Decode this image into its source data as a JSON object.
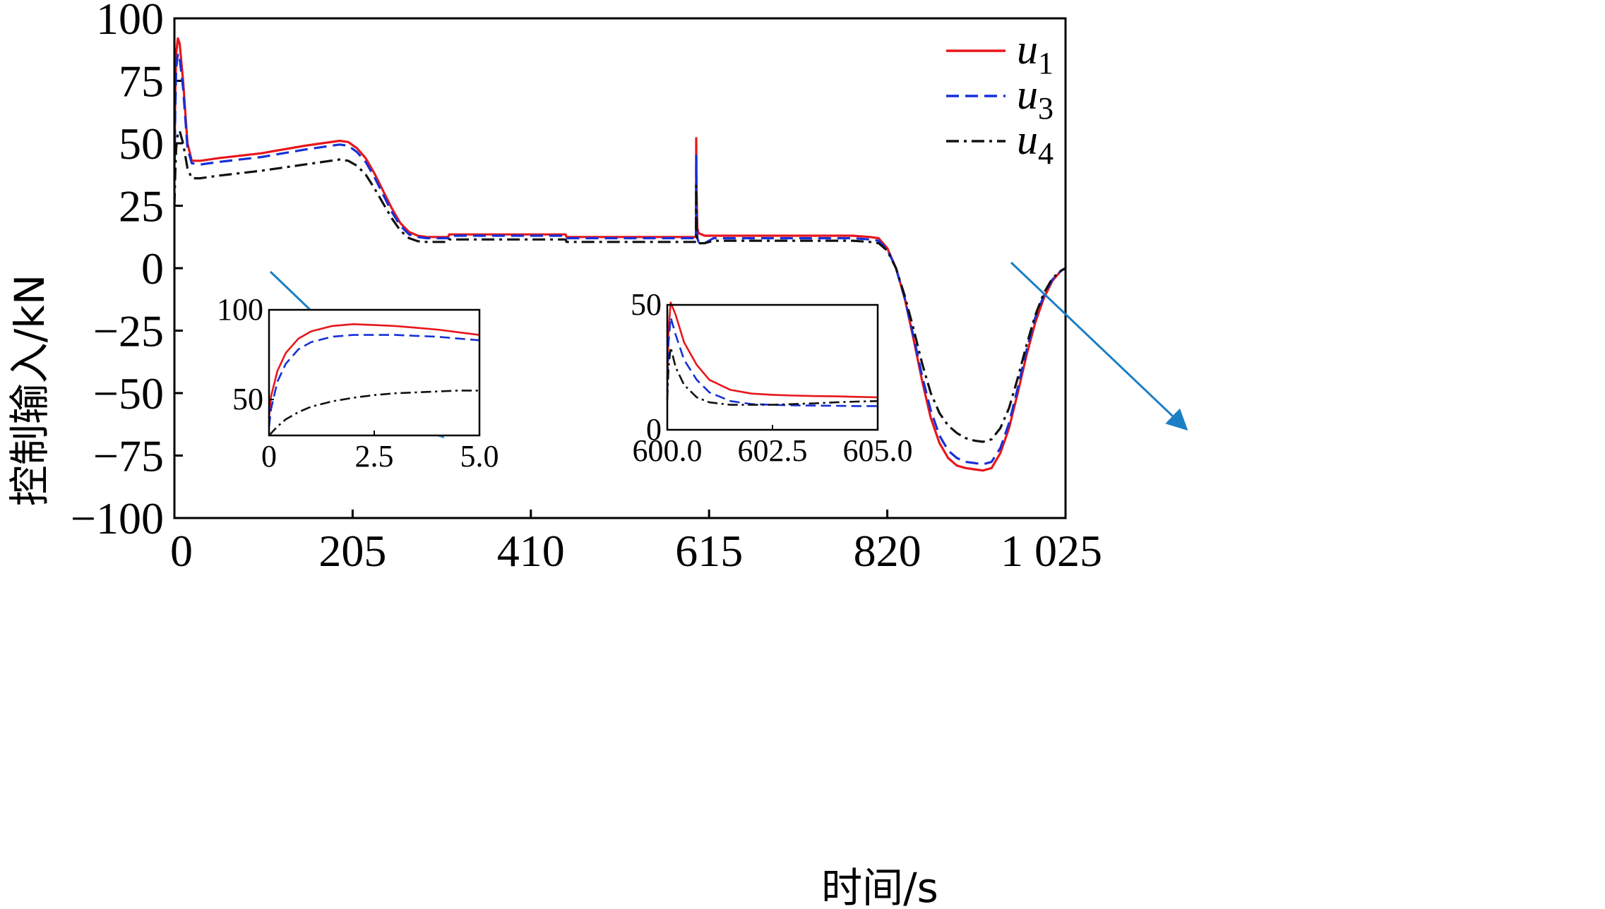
{
  "chart_data": {
    "type": "line",
    "xlabel": "时间/s",
    "ylabel": "控制输入/kN",
    "xlim": [
      0,
      1025
    ],
    "ylim": [
      -100,
      100
    ],
    "xticks": [
      0,
      205,
      410,
      615,
      820,
      1025
    ],
    "xtick_labels": [
      "0",
      "205",
      "410",
      "615",
      "820",
      "1 025"
    ],
    "yticks": [
      100,
      75,
      50,
      25,
      0,
      -25,
      -50,
      -75,
      -100
    ],
    "ytick_labels": [
      "100",
      "75",
      "50",
      "25",
      "0",
      "−25",
      "−50",
      "−75",
      "−100"
    ],
    "grid": false,
    "legend_position": "top-right",
    "series": [
      {
        "name": "u",
        "sub": "1",
        "color": "#e8161b",
        "style": "solid",
        "x": [
          0,
          1,
          2,
          4,
          6,
          10,
          15,
          20,
          30,
          50,
          100,
          150,
          190,
          200,
          210,
          220,
          230,
          240,
          250,
          260,
          270,
          280,
          290,
          300,
          315,
          316,
          450,
          451,
          600,
          600.2,
          600.6,
          601.5,
          603,
          610,
          700,
          780,
          800,
          810,
          820,
          830,
          840,
          850,
          860,
          870,
          880,
          890,
          900,
          910,
          920,
          930,
          940,
          950,
          960,
          970,
          980,
          990,
          1000,
          1010,
          1020,
          1025
        ],
        "y": [
          40,
          70,
          86,
          92,
          90,
          75,
          50,
          43,
          43,
          44,
          46,
          49,
          51,
          50.5,
          48,
          44,
          38,
          31,
          24,
          18,
          14.5,
          13,
          12.5,
          12.5,
          12.5,
          13.5,
          13.5,
          12.5,
          12.5,
          52,
          30,
          16,
          14,
          13,
          13,
          13,
          12.5,
          12,
          8,
          0,
          -12,
          -28,
          -45,
          -60,
          -70,
          -76,
          -79,
          -80,
          -80.5,
          -81,
          -80,
          -74,
          -64,
          -50,
          -35,
          -22,
          -12,
          -5,
          -1,
          0
        ]
      },
      {
        "name": "u",
        "sub": "3",
        "color": "#1530d8",
        "style": "dashed",
        "x": [
          0,
          1,
          2,
          4,
          6,
          10,
          15,
          20,
          30,
          50,
          100,
          150,
          190,
          200,
          210,
          220,
          230,
          240,
          250,
          260,
          270,
          280,
          290,
          300,
          315,
          316,
          450,
          451,
          600,
          600.2,
          600.6,
          601.5,
          603,
          610,
          620,
          700,
          780,
          800,
          810,
          820,
          830,
          840,
          850,
          860,
          870,
          880,
          890,
          900,
          910,
          920,
          930,
          940,
          950,
          960,
          970,
          980,
          990,
          1000,
          1010,
          1020,
          1025
        ],
        "y": [
          35,
          62,
          80,
          86,
          84,
          72,
          48,
          42,
          41.5,
          42.5,
          44.5,
          47.5,
          49.5,
          49,
          46.5,
          42.5,
          36.5,
          29.5,
          22.5,
          17,
          13.5,
          12.5,
          12,
          12,
          12,
          13,
          13,
          12,
          12,
          45,
          22,
          12,
          10.5,
          10,
          12,
          12,
          12,
          11.5,
          11,
          7.5,
          0,
          -12,
          -27,
          -43,
          -57,
          -67,
          -73,
          -76,
          -77.5,
          -78,
          -78.5,
          -77.5,
          -72,
          -62,
          -48,
          -33,
          -20,
          -11,
          -4.5,
          -1,
          0
        ]
      },
      {
        "name": "u",
        "sub": "4",
        "color": "#111111",
        "style": "dashdot",
        "x": [
          0,
          1,
          2,
          4,
          6,
          10,
          15,
          20,
          30,
          50,
          100,
          150,
          190,
          200,
          210,
          220,
          230,
          240,
          250,
          260,
          270,
          280,
          290,
          300,
          315,
          316,
          450,
          451,
          600,
          600.2,
          600.6,
          601.5,
          603,
          610,
          620,
          700,
          780,
          800,
          810,
          820,
          830,
          840,
          850,
          860,
          870,
          880,
          890,
          900,
          910,
          920,
          930,
          940,
          950,
          960,
          970,
          980,
          990,
          1000,
          1010,
          1020,
          1025
        ],
        "y": [
          25,
          38,
          48,
          54,
          55,
          50,
          40,
          36,
          36,
          37,
          39,
          41.5,
          43.5,
          43,
          41,
          37.5,
          32,
          26,
          20,
          15,
          12,
          10.8,
          10.5,
          10.5,
          10.5,
          11.5,
          11.5,
          10.5,
          10.5,
          33,
          16,
          10.5,
          10,
          10,
          11,
          11,
          11,
          10.5,
          10,
          7,
          0,
          -11,
          -24,
          -38,
          -50,
          -58,
          -63,
          -66,
          -68,
          -69,
          -69.5,
          -68.5,
          -64,
          -56,
          -44,
          -31,
          -19,
          -10,
          -4,
          -1,
          0
        ]
      }
    ],
    "insets": [
      {
        "xlim": [
          0,
          5
        ],
        "ylim": [
          30,
          100
        ],
        "xticks": [
          0,
          2.5,
          5
        ],
        "xtick_labels": [
          "0",
          "2.5",
          "5.0"
        ],
        "yticks": [
          100,
          50
        ],
        "ytick_labels": [
          "100",
          "50"
        ],
        "series": [
          {
            "color": "#e8161b",
            "style": "solid",
            "x": [
              0,
              0.05,
              0.2,
              0.4,
              0.7,
              1.0,
              1.5,
              2.0,
              2.5,
              3.0,
              3.5,
              4.0,
              4.5,
              5.0
            ],
            "y": [
              40,
              52,
              66,
              76,
              84,
              88,
              91,
              92,
              91.5,
              91,
              90,
              89,
              87.5,
              86
            ]
          },
          {
            "color": "#1530d8",
            "style": "dashed",
            "x": [
              0,
              0.05,
              0.2,
              0.4,
              0.7,
              1.0,
              1.5,
              2.0,
              2.5,
              3.0,
              3.5,
              4.0,
              4.5,
              5.0
            ],
            "y": [
              35,
              45,
              60,
              70,
              78,
              82,
              85,
              86,
              86,
              86,
              85.5,
              85,
              84,
              83
            ]
          },
          {
            "color": "#111111",
            "style": "dashdot",
            "x": [
              0,
              0.2,
              0.4,
              0.7,
              1.0,
              1.5,
              2.0,
              2.5,
              3.0,
              3.5,
              4.0,
              4.5,
              5.0
            ],
            "y": [
              30,
              35,
              39,
              43,
              46,
              49,
              51,
              52.5,
              53.5,
              54,
              54.5,
              55,
              55
            ]
          }
        ]
      },
      {
        "xlim": [
          600,
          605
        ],
        "ylim": [
          0,
          50
        ],
        "xticks": [
          600,
          602.5,
          605
        ],
        "xtick_labels": [
          "600.0",
          "602.5",
          "605.0"
        ],
        "yticks": [
          50,
          0
        ],
        "ytick_labels": [
          "50",
          "0"
        ],
        "series": [
          {
            "color": "#e8161b",
            "style": "solid",
            "x": [
              600,
              600.03,
              600.08,
              600.2,
              600.4,
              600.7,
              601.0,
              601.5,
              602.0,
              602.5,
              603.0,
              603.5,
              604.0,
              604.5,
              605.0
            ],
            "y": [
              20,
              40,
              51,
              46,
              35,
              26,
              20,
              16,
              14.5,
              14,
              13.7,
              13.5,
              13.4,
              13.2,
              13
            ]
          },
          {
            "color": "#1530d8",
            "style": "dashed",
            "x": [
              600,
              600.03,
              600.08,
              600.2,
              600.4,
              600.7,
              601.0,
              601.5,
              602.0,
              602.5,
              603.0,
              603.5,
              604.0,
              604.5,
              605.0
            ],
            "y": [
              15,
              35,
              45,
              38,
              28,
              20,
              15,
              11.5,
              10.3,
              10,
              9.8,
              9.7,
              9.6,
              9.5,
              9.5
            ]
          },
          {
            "color": "#111111",
            "style": "dashdot",
            "x": [
              600,
              600.03,
              600.08,
              600.2,
              600.4,
              600.7,
              601.0,
              601.5,
              602.0,
              602.5,
              603.0,
              603.5,
              604.0,
              604.5,
              605.0
            ],
            "y": [
              12,
              25,
              33,
              25,
              18,
              13,
              11,
              10,
              10,
              10,
              10.3,
              10.6,
              11,
              11.3,
              11.5
            ]
          }
        ]
      }
    ]
  }
}
